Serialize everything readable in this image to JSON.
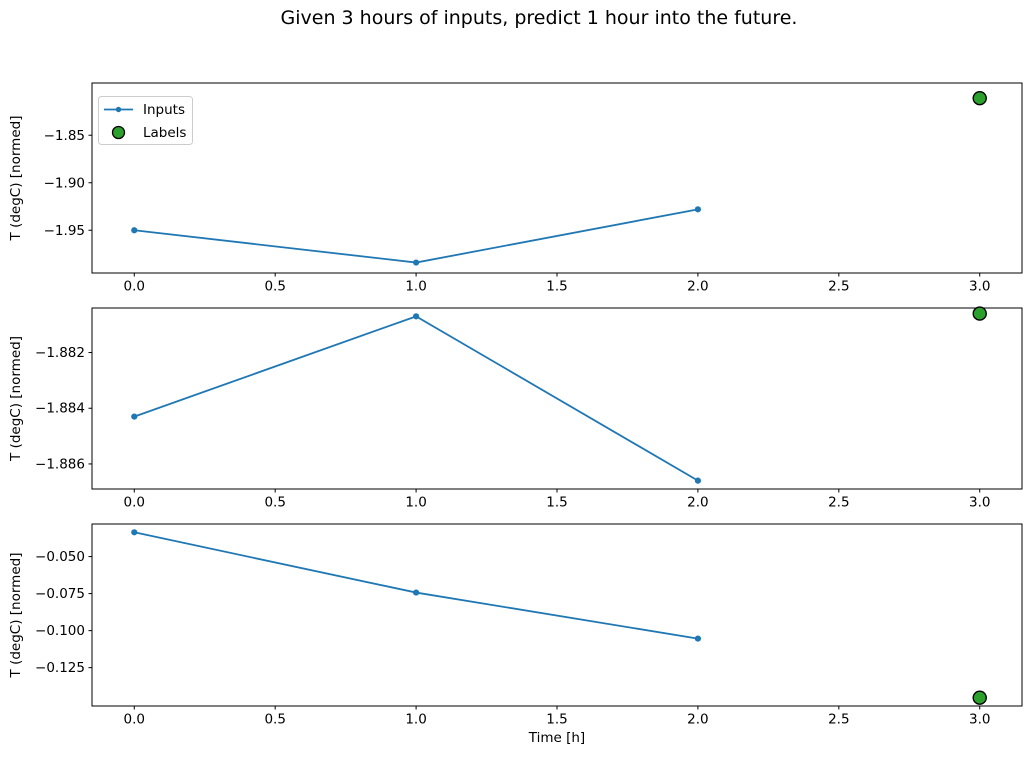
{
  "title": "Given 3 hours of inputs, predict 1 hour into the future.",
  "colors": {
    "inputs_line": "#1f77b4",
    "labels_fill": "#2ca02c",
    "labels_edge": "#000000",
    "spine": "#000000",
    "tick_text": "#000000",
    "legend_border": "#cccccc",
    "legend_bg": "#ffffff"
  },
  "legend": {
    "position": "upper-left-of-first-subplot",
    "items": [
      {
        "label": "Inputs",
        "marker": "line-with-dot"
      },
      {
        "label": "Labels",
        "marker": "green-circle"
      }
    ]
  },
  "xlabel": "Time [h]",
  "chart_data": [
    {
      "type": "line",
      "title": "",
      "ylabel": "T (degC) [normed]",
      "xlabel": "",
      "xlim": [
        -0.15,
        3.15
      ],
      "ylim": [
        -1.995,
        -1.795
      ],
      "grid": false,
      "xticks": {
        "values": [
          0.0,
          0.5,
          1.0,
          1.5,
          2.0,
          2.5,
          3.0
        ],
        "labels": [
          "0.0",
          "0.5",
          "1.0",
          "1.5",
          "2.0",
          "2.5",
          "3.0"
        ]
      },
      "yticks": {
        "values": [
          -1.85,
          -1.9,
          -1.95
        ],
        "labels": [
          "−1.85",
          "−1.90",
          "−1.95"
        ]
      },
      "series": [
        {
          "name": "Inputs",
          "type": "line+marker",
          "x": [
            0,
            1,
            2
          ],
          "y": [
            -1.95,
            -1.984,
            -1.928
          ]
        },
        {
          "name": "Labels",
          "type": "scatter",
          "x": [
            3
          ],
          "y": [
            -1.811
          ]
        }
      ]
    },
    {
      "type": "line",
      "title": "",
      "ylabel": "T (degC) [normed]",
      "xlabel": "",
      "xlim": [
        -0.15,
        3.15
      ],
      "ylim": [
        -1.8869,
        -1.8804
      ],
      "grid": false,
      "xticks": {
        "values": [
          0.0,
          0.5,
          1.0,
          1.5,
          2.0,
          2.5,
          3.0
        ],
        "labels": [
          "0.0",
          "0.5",
          "1.0",
          "1.5",
          "2.0",
          "2.5",
          "3.0"
        ]
      },
      "yticks": {
        "values": [
          -1.882,
          -1.884,
          -1.886
        ],
        "labels": [
          "−1.882",
          "−1.884",
          "−1.886"
        ]
      },
      "series": [
        {
          "name": "Inputs",
          "type": "line+marker",
          "x": [
            0,
            1,
            2
          ],
          "y": [
            -1.8843,
            -1.8807,
            -1.8866
          ]
        },
        {
          "name": "Labels",
          "type": "scatter",
          "x": [
            3
          ],
          "y": [
            -1.8806
          ]
        }
      ]
    },
    {
      "type": "line",
      "title": "",
      "ylabel": "T (degC) [normed]",
      "xlabel": "Time [h]",
      "xlim": [
        -0.15,
        3.15
      ],
      "ylim": [
        -0.1509,
        -0.028
      ],
      "grid": false,
      "xticks": {
        "values": [
          0.0,
          0.5,
          1.0,
          1.5,
          2.0,
          2.5,
          3.0
        ],
        "labels": [
          "0.0",
          "0.5",
          "1.0",
          "1.5",
          "2.0",
          "2.5",
          "3.0"
        ]
      },
      "yticks": {
        "values": [
          -0.05,
          -0.075,
          -0.1,
          -0.125
        ],
        "labels": [
          "−0.050",
          "−0.075",
          "−0.100",
          "−0.125"
        ]
      },
      "series": [
        {
          "name": "Inputs",
          "type": "line+marker",
          "x": [
            0,
            1,
            2
          ],
          "y": [
            -0.0336,
            -0.0743,
            -0.1054
          ]
        },
        {
          "name": "Labels",
          "type": "scatter",
          "x": [
            3
          ],
          "y": [
            -0.1453
          ]
        }
      ]
    }
  ]
}
